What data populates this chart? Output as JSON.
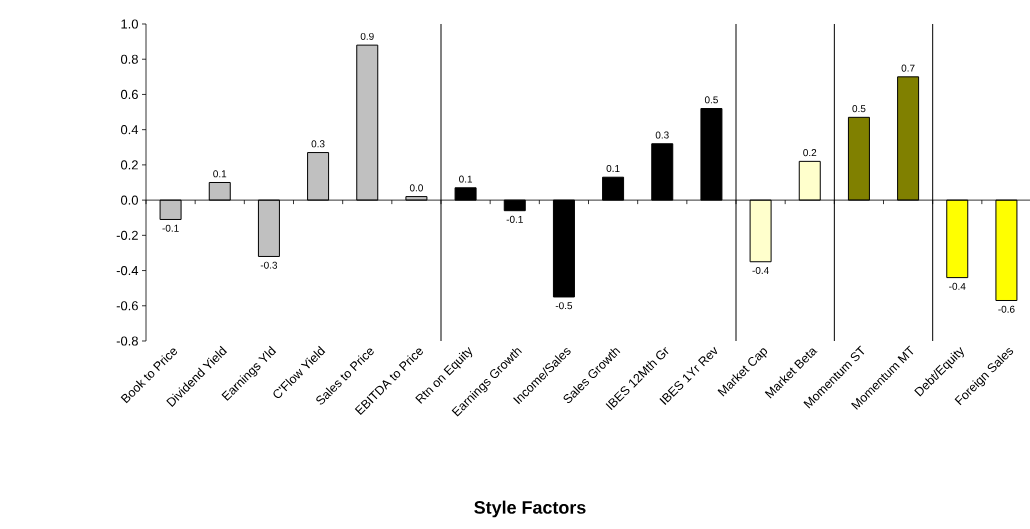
{
  "chart_data": {
    "type": "bar",
    "xlabel": "Style Factors",
    "categories": [
      "Book to Price",
      "Dividend Yield",
      "Earnings Yld",
      "C'Flow Yield",
      "Sales to Price",
      "EBITDA to Price",
      "Rtn on Equity",
      "Earnings Growth",
      "Income/Sales",
      "Sales Growth",
      "IBES 12Mth Gr",
      "IBES 1Yr Rev",
      "Market Cap",
      "Market Beta",
      "Momentum ST",
      "Momentum MT",
      "Debt/Equity",
      "Foreign Sales"
    ],
    "values": [
      -0.11,
      0.1,
      -0.32,
      0.27,
      0.88,
      0.02,
      0.07,
      -0.06,
      -0.55,
      0.13,
      0.32,
      0.52,
      -0.35,
      0.22,
      0.47,
      0.7,
      -0.44,
      -0.57
    ],
    "value_labels": [
      "-0.1",
      "0.1",
      "-0.3",
      "0.3",
      "0.9",
      "0.0",
      "0.1",
      "-0.1",
      "-0.5",
      "0.1",
      "0.3",
      "0.5",
      "-0.4",
      "0.2",
      "0.5",
      "0.7",
      "-0.4",
      "-0.6"
    ],
    "colors": [
      "#c0c0c0",
      "#c0c0c0",
      "#c0c0c0",
      "#c0c0c0",
      "#c0c0c0",
      "#c0c0c0",
      "#000000",
      "#000000",
      "#000000",
      "#000000",
      "#000000",
      "#000000",
      "#ffffcc",
      "#ffffcc",
      "#808000",
      "#808000",
      "#ffff00",
      "#ffff00"
    ],
    "ylim": [
      -0.8,
      1.0
    ],
    "yticks": [
      -0.8,
      -0.6,
      -0.4,
      -0.2,
      {
        "value": 0,
        "label": "0.0"
      },
      0.2,
      0.4,
      0.6,
      0.8,
      {
        "value": 1.0,
        "label": "1.0"
      }
    ]
  }
}
